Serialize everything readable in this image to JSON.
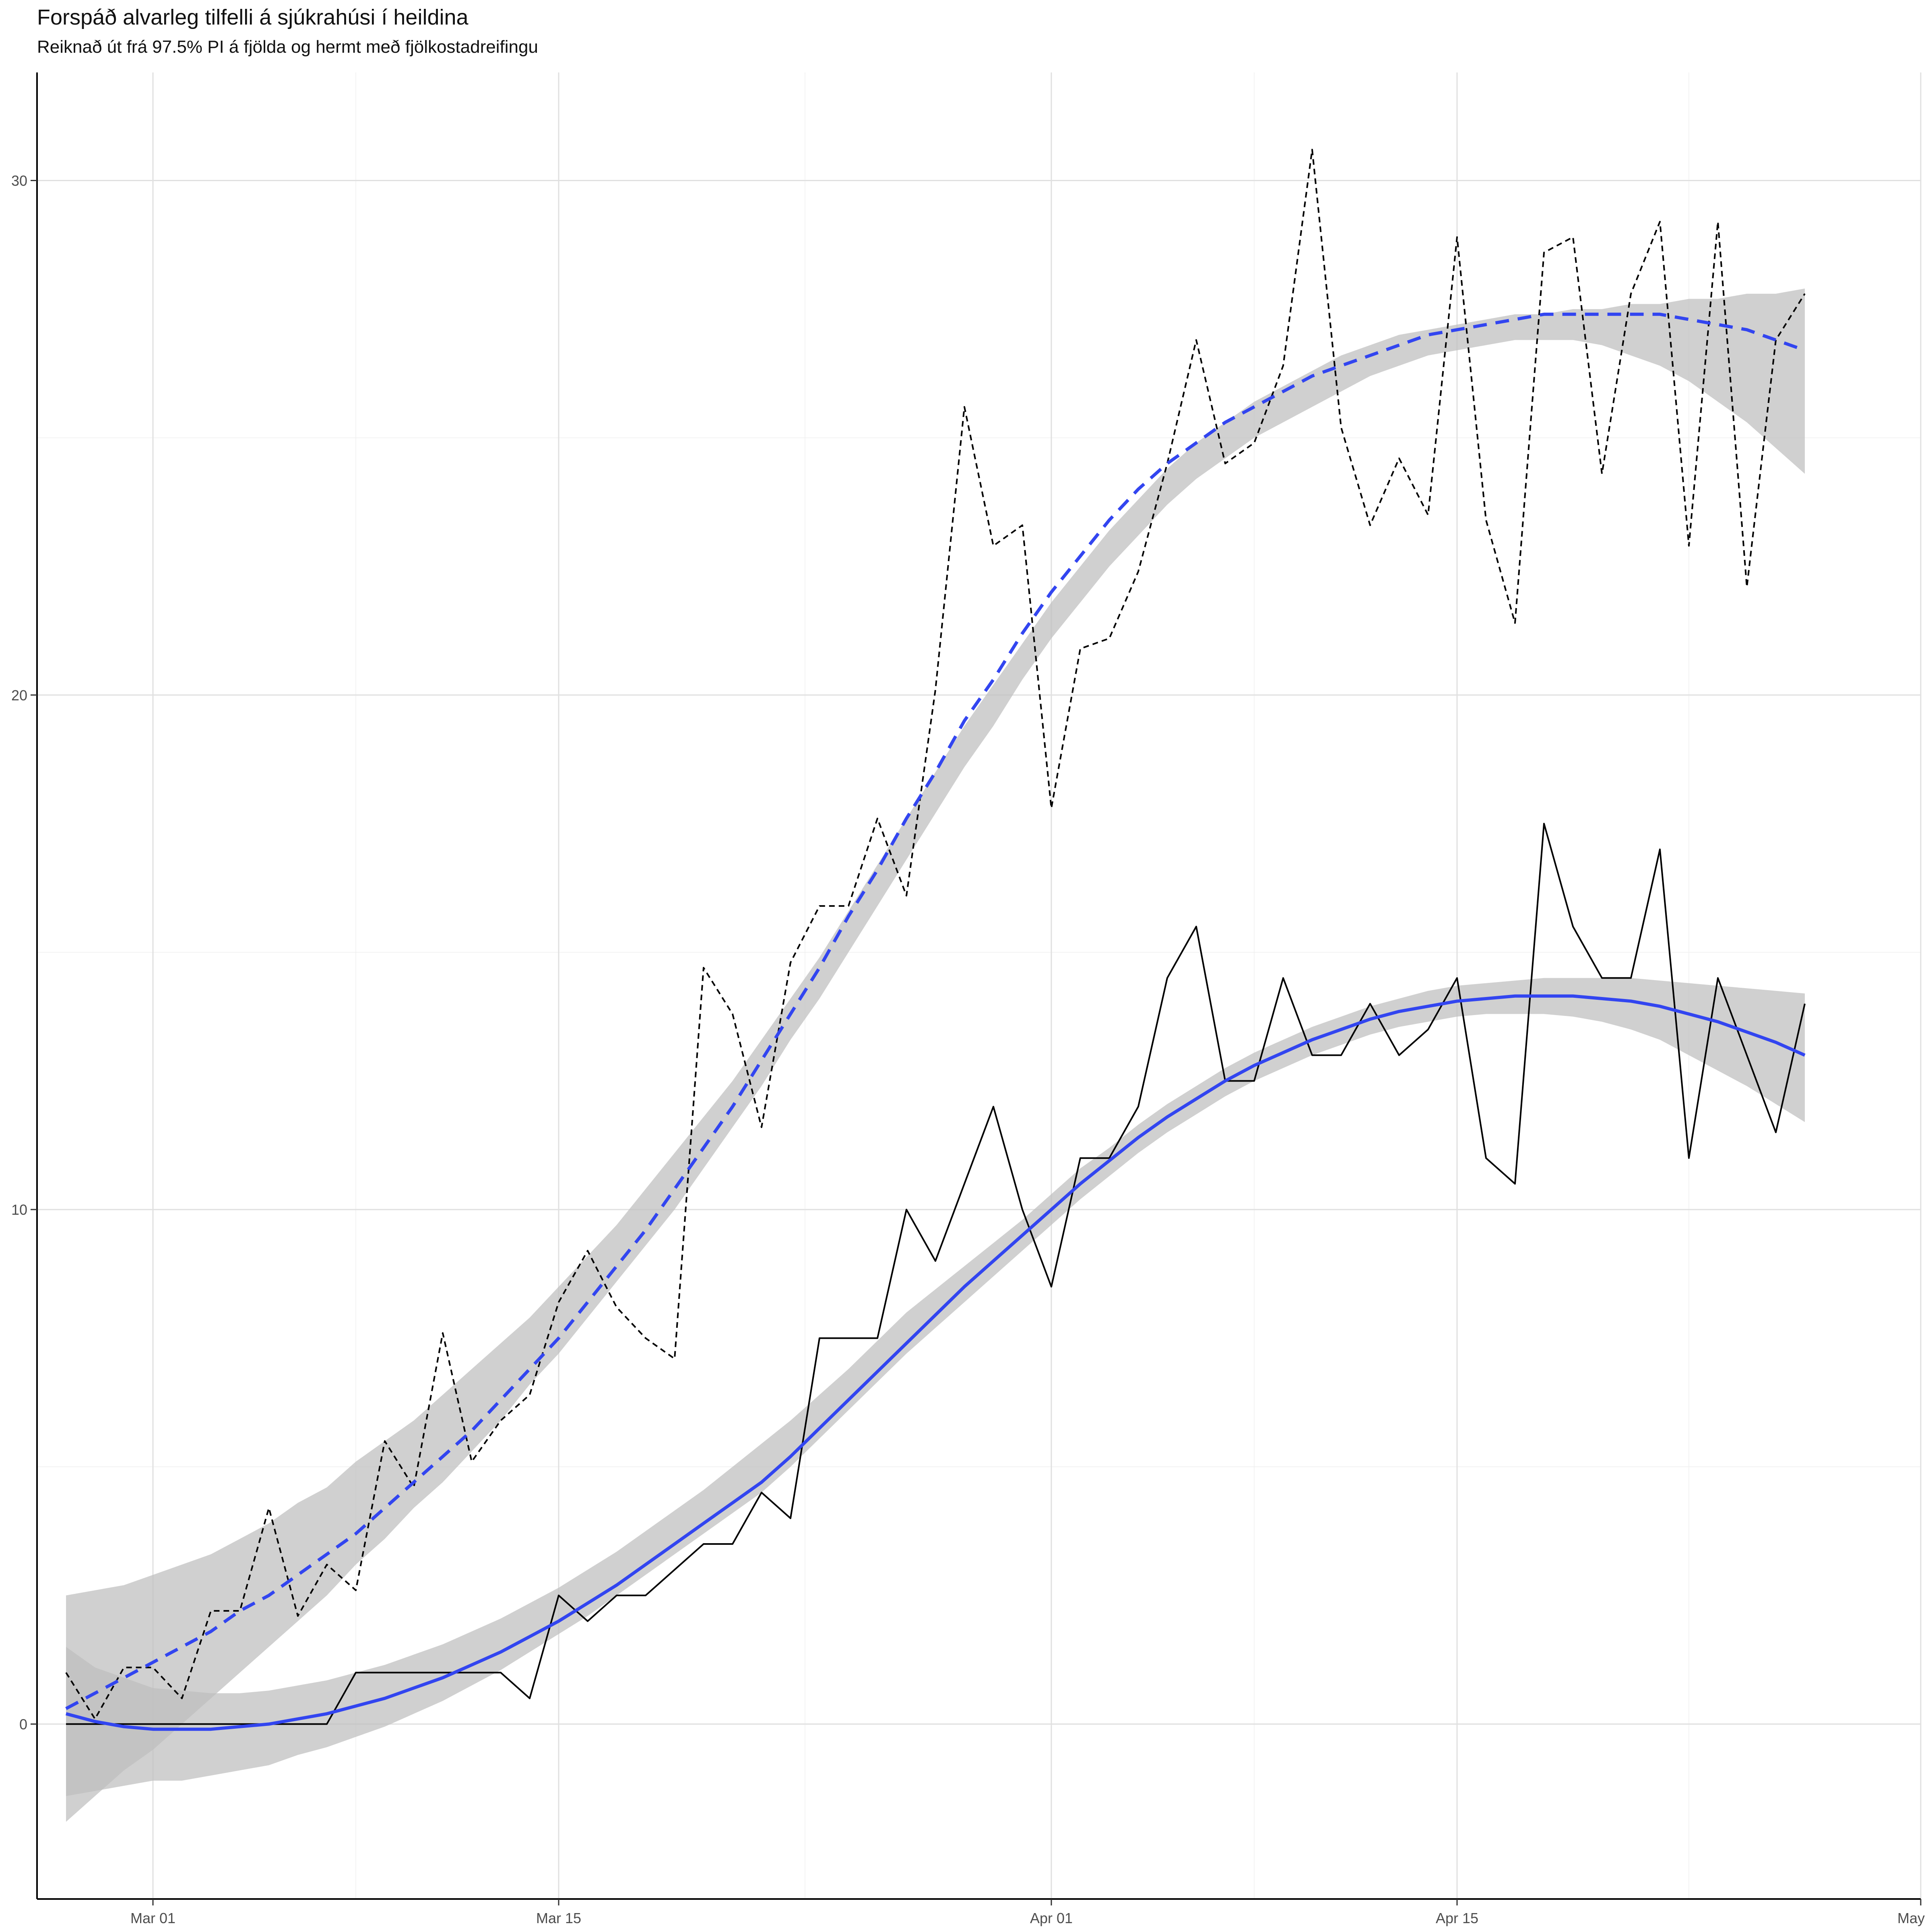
{
  "chart_data": {
    "type": "line",
    "title": "Forspáð alvarleg tilfelli á sjúkrahúsi í heildina",
    "subtitle": "Reiknað út frá 97.5% PI á fjölda og hermt með fjölkostadreifingu",
    "xlabel": "",
    "ylabel": "",
    "x_start": "2020-02-27",
    "x_end": "2020-04-29",
    "xlim": [
      "2020-02-26",
      "2020-05-01"
    ],
    "ylim": [
      -3.4,
      32.1
    ],
    "x_ticks": [
      {
        "date": "2020-03-01",
        "label": "Mar 01"
      },
      {
        "date": "2020-03-15",
        "label": "Mar 15"
      },
      {
        "date": "2020-04-01",
        "label": "Apr 01"
      },
      {
        "date": "2020-04-15",
        "label": "Apr 15"
      },
      {
        "date": "2020-05-01",
        "label": "May"
      }
    ],
    "y_ticks": [
      0,
      10,
      20,
      30
    ],
    "grid": true,
    "legend": "none",
    "colors": {
      "smooth": "#3245f0",
      "band": "#bebebe",
      "lines": "#000000",
      "grid": "#e0e0e0"
    },
    "series": [
      {
        "name": "",
        "style": "dashed",
        "values": [
          1.0,
          0.1,
          1.1,
          1.1,
          0.5,
          2.2,
          2.2,
          4.2,
          2.1,
          3.1,
          2.6,
          5.5,
          4.6,
          7.6,
          5.1,
          5.9,
          6.4,
          8.2,
          9.2,
          8.1,
          7.5,
          7.1,
          14.7,
          13.8,
          11.6,
          14.8,
          15.9,
          15.9,
          17.6,
          16.1,
          20.1,
          25.6,
          22.9,
          23.3,
          17.8,
          20.9,
          21.1,
          22.4,
          24.5,
          26.9,
          24.5,
          24.9,
          26.4,
          30.6,
          25.2,
          23.3,
          24.6,
          23.5,
          28.9,
          23.4,
          21.4,
          28.6,
          28.9,
          24.3,
          27.8,
          29.2,
          22.9,
          29.2,
          22.1,
          26.9,
          27.8
        ]
      },
      {
        "name": "",
        "style": "solid",
        "values": [
          0,
          0,
          0,
          0,
          0,
          0,
          0,
          0,
          0,
          0,
          1.0,
          1.0,
          1.0,
          1.0,
          1.0,
          1.0,
          0.5,
          2.5,
          2.0,
          2.5,
          2.5,
          3.0,
          3.5,
          3.5,
          4.5,
          4.0,
          7.5,
          7.5,
          7.5,
          10.0,
          9.0,
          10.5,
          12.0,
          10.0,
          8.5,
          11.0,
          11.0,
          12.0,
          14.5,
          15.5,
          12.5,
          12.5,
          14.5,
          13.0,
          13.0,
          14.0,
          13.0,
          13.5,
          14.5,
          11.0,
          10.5,
          17.5,
          15.5,
          14.5,
          14.5,
          17.0,
          11.0,
          14.5,
          13.0,
          11.5,
          14.0
        ]
      }
    ],
    "smooth_fits": [
      {
        "style": "dashed",
        "fit": [
          0.3,
          0.6,
          0.9,
          1.2,
          1.5,
          1.8,
          2.2,
          2.5,
          2.9,
          3.3,
          3.7,
          4.2,
          4.7,
          5.2,
          5.7,
          6.3,
          6.9,
          7.5,
          8.2,
          8.9,
          9.6,
          10.4,
          11.2,
          12.0,
          12.9,
          13.8,
          14.7,
          15.7,
          16.6,
          17.6,
          18.5,
          19.5,
          20.3,
          21.2,
          22.0,
          22.7,
          23.4,
          24.0,
          24.5,
          24.9,
          25.3,
          25.6,
          25.9,
          26.2,
          26.4,
          26.6,
          26.8,
          27.0,
          27.1,
          27.2,
          27.3,
          27.4,
          27.4,
          27.4,
          27.4,
          27.4,
          27.3,
          27.2,
          27.1,
          26.9,
          26.7
        ],
        "lower": [
          -1.9,
          -1.4,
          -0.9,
          -0.5,
          0.0,
          0.5,
          1.0,
          1.5,
          2.0,
          2.5,
          3.1,
          3.6,
          4.2,
          4.7,
          5.3,
          5.9,
          6.6,
          7.2,
          7.9,
          8.6,
          9.3,
          10.0,
          10.8,
          11.6,
          12.4,
          13.3,
          14.1,
          15.0,
          15.9,
          16.8,
          17.7,
          18.6,
          19.4,
          20.3,
          21.1,
          21.8,
          22.5,
          23.1,
          23.7,
          24.2,
          24.6,
          25.0,
          25.3,
          25.6,
          25.9,
          26.2,
          26.4,
          26.6,
          26.7,
          26.8,
          26.9,
          26.9,
          26.9,
          26.8,
          26.6,
          26.4,
          26.1,
          25.7,
          25.3,
          24.8,
          24.3
        ],
        "upper": [
          2.5,
          2.6,
          2.7,
          2.9,
          3.1,
          3.3,
          3.6,
          3.9,
          4.3,
          4.6,
          5.1,
          5.5,
          5.9,
          6.4,
          6.9,
          7.4,
          7.9,
          8.5,
          9.1,
          9.7,
          10.4,
          11.1,
          11.8,
          12.5,
          13.3,
          14.1,
          14.9,
          15.8,
          16.7,
          17.6,
          18.5,
          19.4,
          20.2,
          21.0,
          21.8,
          22.5,
          23.2,
          23.8,
          24.4,
          24.9,
          25.3,
          25.7,
          26.0,
          26.3,
          26.6,
          26.8,
          27.0,
          27.1,
          27.2,
          27.3,
          27.4,
          27.4,
          27.5,
          27.5,
          27.6,
          27.6,
          27.7,
          27.7,
          27.8,
          27.8,
          27.9
        ]
      },
      {
        "style": "solid",
        "fit": [
          0.2,
          0.05,
          -0.05,
          -0.1,
          -0.1,
          -0.1,
          -0.05,
          0.0,
          0.1,
          0.2,
          0.35,
          0.5,
          0.7,
          0.9,
          1.15,
          1.4,
          1.7,
          2.0,
          2.35,
          2.7,
          3.1,
          3.5,
          3.9,
          4.3,
          4.7,
          5.2,
          5.75,
          6.3,
          6.85,
          7.4,
          7.95,
          8.5,
          9.0,
          9.5,
          10.0,
          10.5,
          10.95,
          11.4,
          11.8,
          12.15,
          12.5,
          12.8,
          13.05,
          13.3,
          13.5,
          13.7,
          13.85,
          13.95,
          14.05,
          14.1,
          14.15,
          14.15,
          14.15,
          14.1,
          14.05,
          13.95,
          13.8,
          13.65,
          13.45,
          13.25,
          13.0
        ],
        "lower": [
          -1.4,
          -1.3,
          -1.2,
          -1.1,
          -1.1,
          -1.0,
          -0.9,
          -0.8,
          -0.6,
          -0.45,
          -0.25,
          -0.05,
          0.2,
          0.45,
          0.75,
          1.05,
          1.4,
          1.75,
          2.1,
          2.5,
          2.9,
          3.3,
          3.7,
          4.1,
          4.5,
          5.0,
          5.55,
          6.1,
          6.65,
          7.2,
          7.7,
          8.2,
          8.7,
          9.2,
          9.7,
          10.2,
          10.65,
          11.1,
          11.5,
          11.85,
          12.2,
          12.5,
          12.75,
          13.0,
          13.2,
          13.4,
          13.55,
          13.65,
          13.75,
          13.8,
          13.8,
          13.8,
          13.75,
          13.65,
          13.5,
          13.3,
          13.0,
          12.7,
          12.4,
          12.05,
          11.7
        ],
        "upper": [
          1.5,
          1.1,
          0.9,
          0.7,
          0.65,
          0.6,
          0.6,
          0.65,
          0.75,
          0.85,
          1.0,
          1.15,
          1.35,
          1.55,
          1.8,
          2.05,
          2.35,
          2.65,
          3.0,
          3.35,
          3.75,
          4.15,
          4.55,
          5.0,
          5.45,
          5.9,
          6.4,
          6.9,
          7.45,
          8.0,
          8.45,
          8.9,
          9.35,
          9.8,
          10.3,
          10.8,
          11.2,
          11.65,
          12.05,
          12.4,
          12.75,
          13.05,
          13.3,
          13.55,
          13.75,
          13.95,
          14.1,
          14.25,
          14.35,
          14.4,
          14.45,
          14.5,
          14.5,
          14.5,
          14.5,
          14.45,
          14.4,
          14.35,
          14.3,
          14.25,
          14.2
        ]
      }
    ]
  }
}
